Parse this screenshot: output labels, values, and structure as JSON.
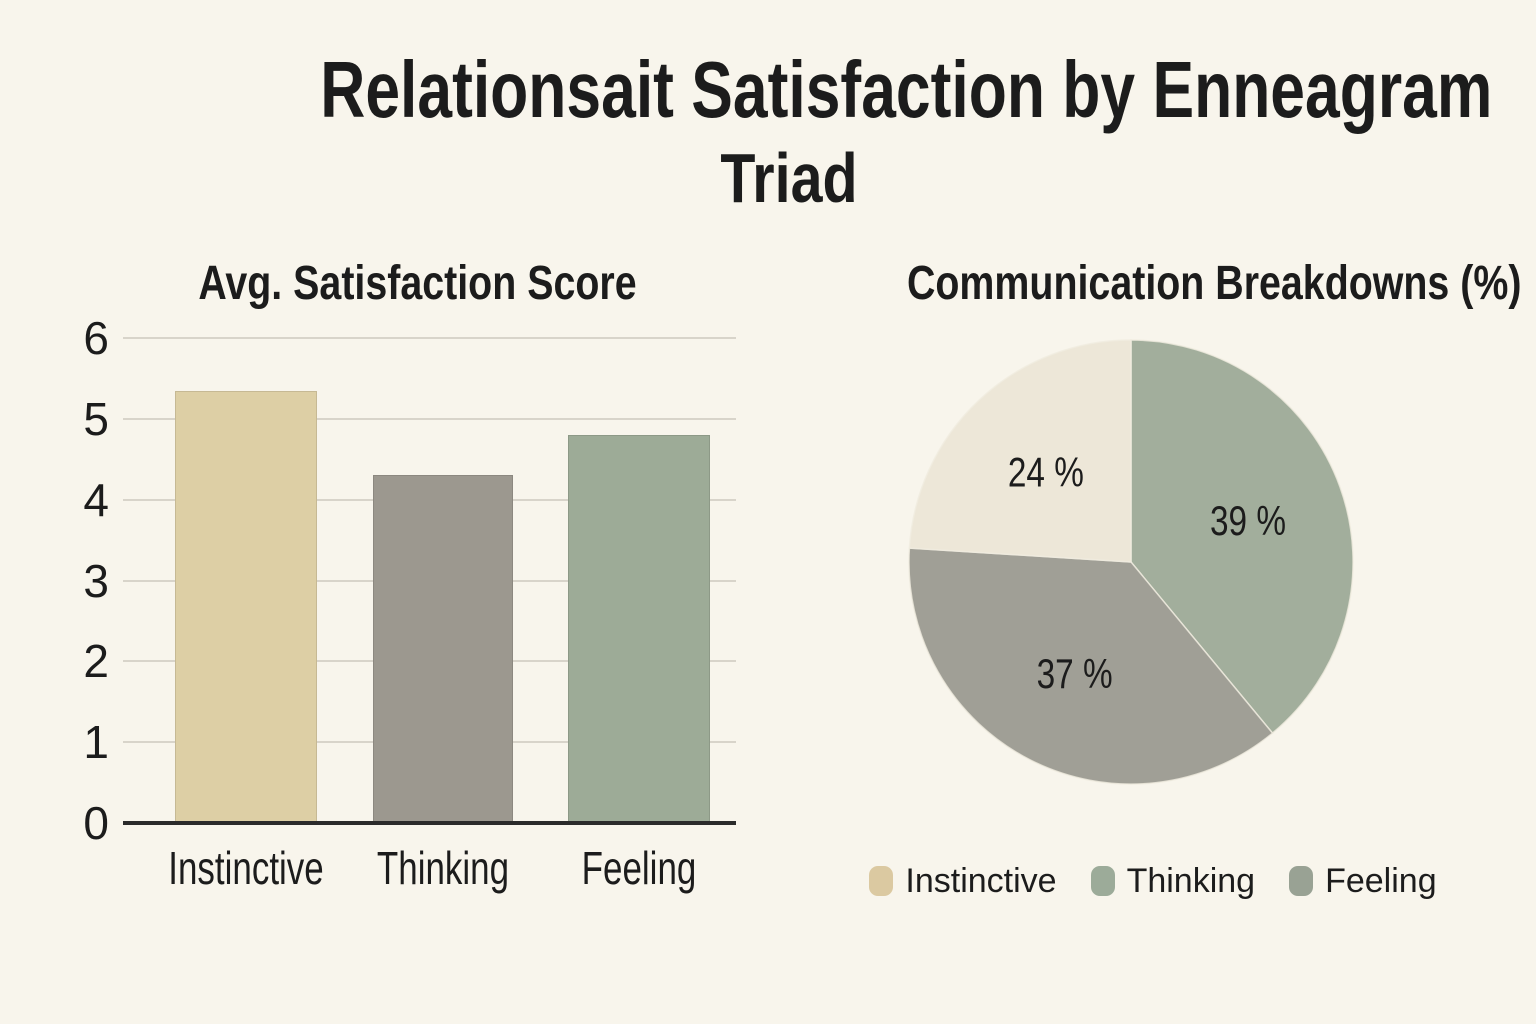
{
  "header": {
    "title_line1": "Relationsait Satisfaction by Enneagram",
    "title_line2": "Triad"
  },
  "colors": {
    "background": "#f8f5ec",
    "text": "#1c1c1c",
    "gridline": "#d8d4ca",
    "axis_line": "#2b2b2b"
  },
  "chart_data": [
    {
      "type": "bar",
      "title": "Avg. Satisfaction Score",
      "categories": [
        "Instinctive",
        "Thinking",
        "Feeling"
      ],
      "values": [
        5.35,
        4.3,
        4.8
      ],
      "bar_colors": [
        "#ddcfa5",
        "#9c988f",
        "#9dab97"
      ],
      "xlabel": "",
      "ylabel": "",
      "ylim": [
        0,
        6
      ],
      "yticks": [
        0,
        1,
        2,
        3,
        4,
        5,
        6
      ],
      "grid": true,
      "legend_position": "none"
    },
    {
      "type": "pie",
      "title": "Communication Breakdowns (%)",
      "slices": [
        {
          "label": "Thinking",
          "value": 39,
          "display": "39 %",
          "color": "#a2ae9c"
        },
        {
          "label": "Feeling",
          "value": 37,
          "display": "37 %",
          "color": "#a09f96"
        },
        {
          "label": "Instinctive",
          "value": 24,
          "display": "24 %",
          "color": "#ede7d8"
        }
      ],
      "start_angle": "12 o'clock",
      "direction": "clockwise",
      "legend_position": "bottom"
    }
  ],
  "legend": {
    "items": [
      {
        "label": "Instinctive",
        "color": "#dbc9a1"
      },
      {
        "label": "Thinking",
        "color": "#9cab99"
      },
      {
        "label": "Feeling",
        "color": "#99a294"
      }
    ]
  }
}
